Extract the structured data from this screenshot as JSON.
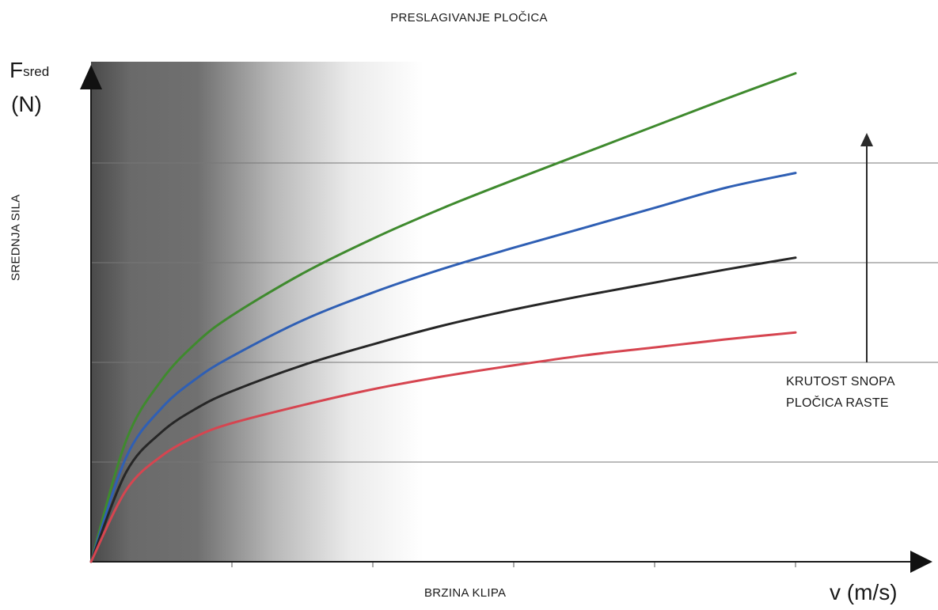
{
  "chart_data": {
    "type": "line",
    "title": "PRESLAGIVANJE PLOČICA",
    "y_symbol": "F",
    "y_symbol_sub": "sred",
    "y_unit": "(N)",
    "ylabel": "SREDNJA SILA",
    "xlabel": "BRZINA KLIPA",
    "x_unit": "v (m/s)",
    "xlim": [
      0,
      5
    ],
    "ylim": [
      0,
      5
    ],
    "x_tick_count": 5,
    "y_gridlines": 4,
    "grid": true,
    "annotation": [
      "KRUTOST SNOPA",
      "PLOČICA RASTE"
    ],
    "series": [
      {
        "color": "#3f8a2e",
        "x": [
          0,
          0.25,
          0.5,
          0.75,
          1,
          1.5,
          2,
          2.5,
          3,
          3.5,
          4,
          4.5,
          5
        ],
        "y": [
          0,
          1.22,
          1.82,
          2.2,
          2.47,
          2.89,
          3.24,
          3.55,
          3.83,
          4.1,
          4.37,
          4.64,
          4.9
        ]
      },
      {
        "color": "#2f5fb4",
        "x": [
          0,
          0.25,
          0.5,
          0.75,
          1,
          1.5,
          2,
          2.5,
          3,
          3.5,
          4,
          4.5,
          5
        ],
        "y": [
          0,
          1.05,
          1.54,
          1.84,
          2.06,
          2.42,
          2.7,
          2.94,
          3.15,
          3.35,
          3.55,
          3.75,
          3.9
        ]
      },
      {
        "color": "#262626",
        "x": [
          0,
          0.25,
          0.5,
          0.75,
          1,
          1.5,
          2,
          2.5,
          3,
          3.5,
          4,
          4.5,
          5
        ],
        "y": [
          0,
          0.9,
          1.3,
          1.54,
          1.71,
          1.97,
          2.18,
          2.37,
          2.53,
          2.67,
          2.8,
          2.93,
          3.05
        ]
      },
      {
        "color": "#d64550",
        "x": [
          0,
          0.25,
          0.5,
          0.75,
          1,
          1.5,
          2,
          2.5,
          3,
          3.5,
          4,
          4.5,
          5
        ],
        "y": [
          0,
          0.72,
          1.06,
          1.26,
          1.39,
          1.57,
          1.73,
          1.86,
          1.97,
          2.07,
          2.15,
          2.23,
          2.3
        ]
      }
    ]
  }
}
